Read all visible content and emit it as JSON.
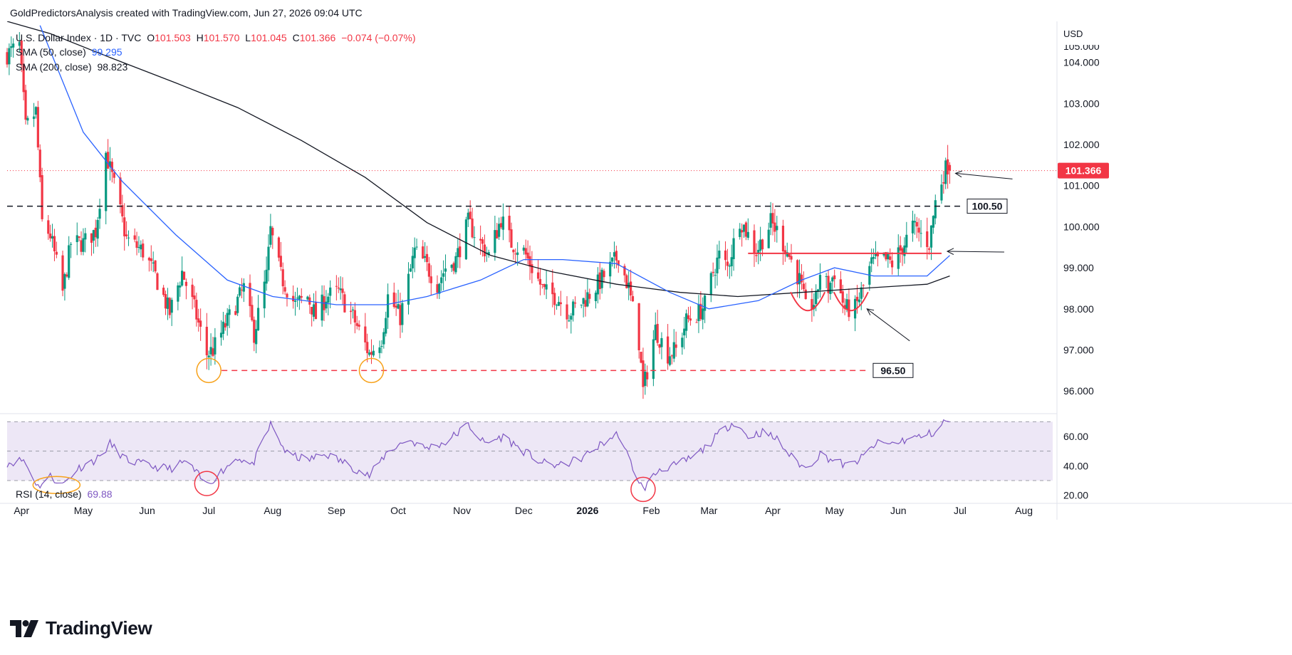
{
  "header": {
    "attribution": "GoldPredictorsAnalysis created with TradingView.com, Jun 27, 2026 09:04 UTC"
  },
  "legend": {
    "symbol": "U.S. Dollar Index · 1D · TVC",
    "o_label": "O",
    "o": "101.503",
    "h_label": "H",
    "h": "101.570",
    "l_label": "L",
    "l": "101.045",
    "c_label": "C",
    "c": "101.366",
    "change": "−0.074 (−0.07%)",
    "sma50_label": "SMA (50, close)",
    "sma50_value": "99.295",
    "sma200_label": "SMA (200, close)",
    "sma200_value": "98.823",
    "rsi_label": "RSI (14, close)",
    "rsi_value": "69.88"
  },
  "currency": "USD",
  "brand": "TradingView",
  "colors": {
    "up": "#089981",
    "down": "#f23645",
    "sma50": "#2962ff",
    "sma200": "#131722",
    "rsi": "#7e57c2",
    "rsi_band": "#ede7f6",
    "annotation_red": "#f23645",
    "annotation_orange": "#f7a21b"
  },
  "chart_data": {
    "type": "candlestick",
    "title": "U.S. Dollar Index · 1D · TVC",
    "x_range": [
      "2025-03-25",
      "2026-08-15"
    ],
    "y_range": [
      95.5,
      105.0
    ],
    "y_ticks": [
      "96.000",
      "97.000",
      "98.000",
      "99.000",
      "100.000",
      "101.000",
      "102.000",
      "103.000",
      "104.000"
    ],
    "x_ticks": [
      "Apr",
      "May",
      "Jun",
      "Jul",
      "Aug",
      "Sep",
      "Oct",
      "Nov",
      "Dec",
      "2026",
      "Feb",
      "Mar",
      "Apr",
      "May",
      "Jun",
      "Jul",
      "Aug"
    ],
    "last_price": {
      "value": 101.366,
      "label": "101.366"
    },
    "horizontal_levels": [
      {
        "value": 100.5,
        "label": "100.50",
        "style": "dashed",
        "color": "#131722"
      },
      {
        "value": 96.5,
        "label": "96.50",
        "style": "dashed",
        "color": "#f23645"
      },
      {
        "value": 99.35,
        "label": "",
        "style": "solid",
        "color": "#f23645"
      }
    ],
    "close_path": [
      [
        "2025-03-25",
        104.2
      ],
      [
        "2025-03-31",
        104.4
      ],
      [
        "2025-04-03",
        102.4
      ],
      [
        "2025-04-08",
        102.8
      ],
      [
        "2025-04-11",
        100.1
      ],
      [
        "2025-04-15",
        99.8
      ],
      [
        "2025-04-21",
        98.4
      ],
      [
        "2025-04-25",
        99.6
      ],
      [
        "2025-05-01",
        99.6
      ],
      [
        "2025-05-07",
        99.9
      ],
      [
        "2025-05-12",
        101.8
      ],
      [
        "2025-05-16",
        101.0
      ],
      [
        "2025-05-22",
        99.7
      ],
      [
        "2025-05-30",
        99.4
      ],
      [
        "2025-06-05",
        98.8
      ],
      [
        "2025-06-12",
        97.9
      ],
      [
        "2025-06-18",
        98.9
      ],
      [
        "2025-06-24",
        98.0
      ],
      [
        "2025-06-30",
        96.9
      ],
      [
        "2025-07-03",
        97.0
      ],
      [
        "2025-07-08",
        97.5
      ],
      [
        "2025-07-14",
        98.1
      ],
      [
        "2025-07-18",
        98.5
      ],
      [
        "2025-07-23",
        97.4
      ],
      [
        "2025-07-29",
        98.8
      ],
      [
        "2025-07-31",
        99.9
      ],
      [
        "2025-08-05",
        98.8
      ],
      [
        "2025-08-12",
        98.1
      ],
      [
        "2025-08-18",
        98.3
      ],
      [
        "2025-08-22",
        97.8
      ],
      [
        "2025-08-27",
        98.3
      ],
      [
        "2025-09-02",
        98.4
      ],
      [
        "2025-09-09",
        97.8
      ],
      [
        "2025-09-17",
        96.9
      ],
      [
        "2025-09-23",
        97.3
      ],
      [
        "2025-09-26",
        98.3
      ],
      [
        "2025-10-02",
        97.8
      ],
      [
        "2025-10-09",
        99.4
      ],
      [
        "2025-10-14",
        99.1
      ],
      [
        "2025-10-20",
        98.6
      ],
      [
        "2025-10-24",
        99.0
      ],
      [
        "2025-10-29",
        99.2
      ],
      [
        "2025-11-04",
        100.1
      ],
      [
        "2025-11-10",
        99.6
      ],
      [
        "2025-11-14",
        99.3
      ],
      [
        "2025-11-20",
        100.2
      ],
      [
        "2025-11-25",
        99.6
      ],
      [
        "2025-12-01",
        99.4
      ],
      [
        "2025-12-05",
        99.0
      ],
      [
        "2025-12-11",
        98.4
      ],
      [
        "2025-12-17",
        98.3
      ],
      [
        "2025-12-23",
        97.9
      ],
      [
        "2025-12-30",
        98.2
      ],
      [
        "2026-01-06",
        98.6
      ],
      [
        "2026-01-12",
        99.0
      ],
      [
        "2026-01-16",
        99.3
      ],
      [
        "2026-01-21",
        98.5
      ],
      [
        "2026-01-26",
        97.2
      ],
      [
        "2026-01-28",
        96.0
      ],
      [
        "2026-02-03",
        97.5
      ],
      [
        "2026-02-09",
        96.9
      ],
      [
        "2026-02-13",
        97.0
      ],
      [
        "2026-02-18",
        97.7
      ],
      [
        "2026-02-24",
        97.9
      ],
      [
        "2026-02-27",
        98.1
      ],
      [
        "2026-03-03",
        98.9
      ],
      [
        "2026-03-06",
        99.3
      ],
      [
        "2026-03-10",
        99.0
      ],
      [
        "2026-03-16",
        100.2
      ],
      [
        "2026-03-20",
        99.8
      ],
      [
        "2026-03-24",
        99.4
      ],
      [
        "2026-03-27",
        99.7
      ],
      [
        "2026-03-31",
        100.1
      ],
      [
        "2026-04-03",
        99.9
      ],
      [
        "2026-04-08",
        99.4
      ],
      [
        "2026-04-14",
        98.7
      ],
      [
        "2026-04-17",
        98.0
      ],
      [
        "2026-04-22",
        98.2
      ],
      [
        "2026-04-24",
        98.9
      ],
      [
        "2026-04-28",
        98.5
      ],
      [
        "2026-05-01",
        98.9
      ],
      [
        "2026-05-06",
        98.0
      ],
      [
        "2026-05-11",
        98.0
      ],
      [
        "2026-05-14",
        98.4
      ],
      [
        "2026-05-19",
        99.1
      ],
      [
        "2026-05-25",
        99.2
      ],
      [
        "2026-05-29",
        99.1
      ],
      [
        "2026-06-03",
        99.5
      ],
      [
        "2026-06-08",
        100.0
      ],
      [
        "2026-06-12",
        99.8
      ],
      [
        "2026-06-16",
        99.6
      ],
      [
        "2026-06-19",
        100.6
      ],
      [
        "2026-06-23",
        101.3
      ],
      [
        "2026-06-25",
        101.5
      ],
      [
        "2026-06-26",
        101.366
      ]
    ],
    "sma50": [
      [
        "2025-04-10",
        104.9
      ],
      [
        "2025-05-01",
        102.3
      ],
      [
        "2025-05-20",
        101.1
      ],
      [
        "2025-06-15",
        99.8
      ],
      [
        "2025-07-10",
        98.7
      ],
      [
        "2025-08-01",
        98.3
      ],
      [
        "2025-09-01",
        98.1
      ],
      [
        "2025-09-25",
        98.1
      ],
      [
        "2025-10-15",
        98.3
      ],
      [
        "2025-11-10",
        98.7
      ],
      [
        "2025-12-01",
        99.2
      ],
      [
        "2025-12-20",
        99.2
      ],
      [
        "2026-01-15",
        99.1
      ],
      [
        "2026-02-10",
        98.4
      ],
      [
        "2026-03-01",
        98.0
      ],
      [
        "2026-03-25",
        98.2
      ],
      [
        "2026-04-15",
        98.7
      ],
      [
        "2026-05-01",
        99.0
      ],
      [
        "2026-05-20",
        98.8
      ],
      [
        "2026-06-15",
        98.8
      ],
      [
        "2026-06-26",
        99.3
      ]
    ],
    "sma200": [
      [
        "2025-03-25",
        105.0
      ],
      [
        "2025-04-15",
        104.7
      ],
      [
        "2025-05-15",
        104.1
      ],
      [
        "2025-06-15",
        103.5
      ],
      [
        "2025-07-15",
        102.9
      ],
      [
        "2025-08-15",
        102.1
      ],
      [
        "2025-09-15",
        101.2
      ],
      [
        "2025-10-15",
        100.1
      ],
      [
        "2025-11-15",
        99.3
      ],
      [
        "2025-12-15",
        98.9
      ],
      [
        "2026-01-15",
        98.6
      ],
      [
        "2026-02-15",
        98.4
      ],
      [
        "2026-03-15",
        98.3
      ],
      [
        "2026-04-15",
        98.4
      ],
      [
        "2026-05-15",
        98.5
      ],
      [
        "2026-06-15",
        98.6
      ],
      [
        "2026-06-26",
        98.8
      ]
    ],
    "rsi": {
      "label": "RSI (14, close)",
      "y_range": [
        15,
        75
      ],
      "y_ticks": [
        "20.00",
        "40.00",
        "60.00"
      ],
      "bands": [
        30,
        50,
        70
      ],
      "values": [
        [
          "2025-03-25",
          42
        ],
        [
          "2025-04-02",
          44
        ],
        [
          "2025-04-09",
          26
        ],
        [
          "2025-04-15",
          33
        ],
        [
          "2025-04-21",
          27
        ],
        [
          "2025-04-28",
          38
        ],
        [
          "2025-05-08",
          45
        ],
        [
          "2025-05-14",
          55
        ],
        [
          "2025-05-22",
          44
        ],
        [
          "2025-06-02",
          40
        ],
        [
          "2025-06-12",
          38
        ],
        [
          "2025-06-20",
          43
        ],
        [
          "2025-06-30",
          27
        ],
        [
          "2025-07-07",
          36
        ],
        [
          "2025-07-15",
          46
        ],
        [
          "2025-07-22",
          40
        ],
        [
          "2025-07-31",
          68
        ],
        [
          "2025-08-08",
          48
        ],
        [
          "2025-08-18",
          44
        ],
        [
          "2025-08-27",
          48
        ],
        [
          "2025-09-05",
          42
        ],
        [
          "2025-09-17",
          33
        ],
        [
          "2025-09-26",
          50
        ],
        [
          "2025-10-06",
          58
        ],
        [
          "2025-10-14",
          52
        ],
        [
          "2025-10-24",
          56
        ],
        [
          "2025-11-04",
          68
        ],
        [
          "2025-11-12",
          55
        ],
        [
          "2025-11-21",
          60
        ],
        [
          "2025-12-01",
          50
        ],
        [
          "2025-12-10",
          42
        ],
        [
          "2025-12-19",
          40
        ],
        [
          "2025-12-30",
          46
        ],
        [
          "2026-01-09",
          56
        ],
        [
          "2026-01-16",
          62
        ],
        [
          "2026-01-21",
          45
        ],
        [
          "2026-01-28",
          24
        ],
        [
          "2026-02-05",
          38
        ],
        [
          "2026-02-12",
          40
        ],
        [
          "2026-02-20",
          45
        ],
        [
          "2026-02-27",
          52
        ],
        [
          "2026-03-06",
          62
        ],
        [
          "2026-03-13",
          70
        ],
        [
          "2026-03-20",
          60
        ],
        [
          "2026-03-27",
          63
        ],
        [
          "2026-04-03",
          58
        ],
        [
          "2026-04-10",
          46
        ],
        [
          "2026-04-17",
          38
        ],
        [
          "2026-04-24",
          48
        ],
        [
          "2026-04-30",
          44
        ],
        [
          "2026-05-07",
          40
        ],
        [
          "2026-05-14",
          45
        ],
        [
          "2026-05-21",
          55
        ],
        [
          "2026-05-29",
          55
        ],
        [
          "2026-06-05",
          58
        ],
        [
          "2026-06-12",
          60
        ],
        [
          "2026-06-19",
          63
        ],
        [
          "2026-06-24",
          71
        ],
        [
          "2026-06-26",
          69.88
        ]
      ]
    },
    "annotations": [
      {
        "type": "circle",
        "color": "orange",
        "date": "2025-07-01",
        "value": 96.5
      },
      {
        "type": "circle",
        "color": "orange",
        "date": "2025-09-18",
        "value": 96.5
      },
      {
        "type": "arc",
        "color": "red",
        "date": "2026-04-18",
        "value": 98.2
      },
      {
        "type": "arc",
        "color": "red",
        "date": "2026-05-09",
        "value": 98.2
      },
      {
        "type": "arrow",
        "target_date": "2026-06-26",
        "target_value": 101.3
      },
      {
        "type": "arrow",
        "target_date": "2026-06-22",
        "target_value": 99.4
      },
      {
        "type": "arrow",
        "target_date": "2026-05-14",
        "target_value": 98.0
      },
      {
        "type": "rsi_ellipse",
        "color": "orange",
        "date": "2025-04-18",
        "value": 27
      },
      {
        "type": "rsi_circle",
        "color": "red",
        "date": "2025-06-30",
        "value": 28
      },
      {
        "type": "rsi_circle",
        "color": "red",
        "date": "2026-01-28",
        "value": 24
      }
    ]
  }
}
